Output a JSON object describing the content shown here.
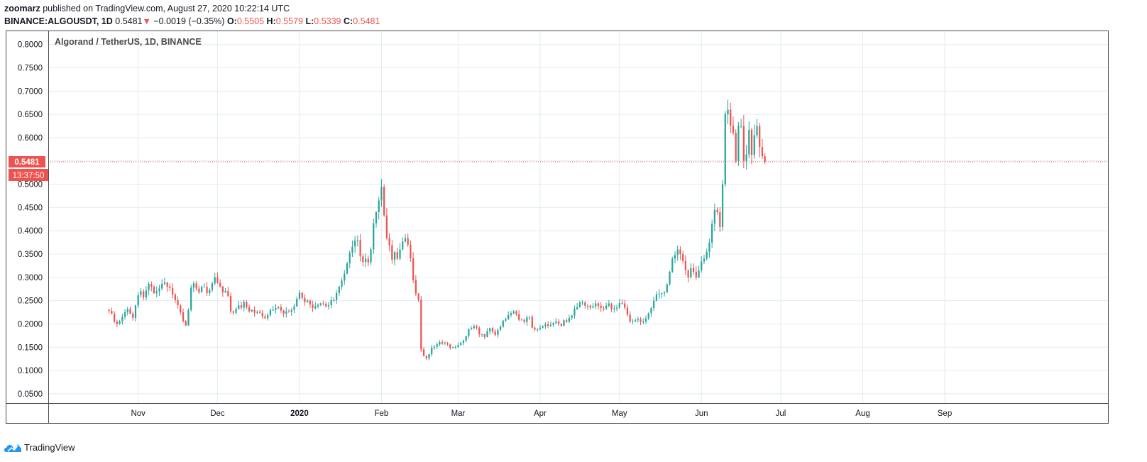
{
  "header": {
    "publisher": "zoomarz",
    "published_text": "published on TradingView.com, August 27, 2020 10:22:14 UTC",
    "symbol": "BINANCE:ALGOUSDT, 1D",
    "last": "0.5481",
    "arrow": "▼",
    "change": "−0.0019 (−0.35%)",
    "open_label": "O:",
    "open": "0.5505",
    "high_label": "H:",
    "high": "0.5579",
    "low_label": "L:",
    "low": "0.5339",
    "close_label": "C:",
    "close": "0.5481"
  },
  "footer": {
    "brand": "TradingView"
  },
  "colors": {
    "up": "#26a69a",
    "down": "#ef5350",
    "grid": "#e1ecf2",
    "border": "#4a4a4a"
  },
  "chart_data": {
    "type": "candlestick",
    "title": "Algorand / TetherUS, 1D, BINANCE",
    "ylim": [
      0.03,
      0.83
    ],
    "yticks": [
      0.05,
      0.1,
      0.15,
      0.2,
      0.25,
      0.3,
      0.35,
      0.4,
      0.45,
      0.5,
      0.55,
      0.6,
      0.65,
      0.7,
      0.75,
      0.8
    ],
    "ytick_labels": [
      "0.0500",
      "0.1000",
      "0.1500",
      "0.2000",
      "0.2500",
      "0.3000",
      "0.3500",
      "0.4000",
      "0.4500",
      "0.5000",
      "0.5500",
      "0.6000",
      "0.6500",
      "0.7000",
      "0.7500",
      "0.8000"
    ],
    "x_range_days": [
      -34,
      367
    ],
    "xticks": [
      {
        "label": "Nov",
        "day": 0,
        "bold": false
      },
      {
        "label": "Dec",
        "day": 30,
        "bold": false
      },
      {
        "label": "2020",
        "day": 61,
        "bold": true
      },
      {
        "label": "Feb",
        "day": 92,
        "bold": false
      },
      {
        "label": "Mar",
        "day": 121,
        "bold": false
      },
      {
        "label": "Apr",
        "day": 152,
        "bold": false
      },
      {
        "label": "May",
        "day": 182,
        "bold": false
      },
      {
        "label": "Jun",
        "day": 213,
        "bold": false
      },
      {
        "label": "Jul",
        "day": 243,
        "bold": false
      },
      {
        "label": "Aug",
        "day": 274,
        "bold": false
      },
      {
        "label": "Sep",
        "day": 305,
        "bold": false
      }
    ],
    "start_day": -11,
    "closes": [
      0.228,
      0.222,
      0.205,
      0.2,
      0.206,
      0.215,
      0.225,
      0.232,
      0.222,
      0.213,
      0.24,
      0.262,
      0.27,
      0.257,
      0.272,
      0.286,
      0.28,
      0.266,
      0.27,
      0.276,
      0.286,
      0.289,
      0.28,
      0.277,
      0.263,
      0.251,
      0.24,
      0.225,
      0.206,
      0.197,
      0.23,
      0.278,
      0.287,
      0.276,
      0.268,
      0.28,
      0.28,
      0.266,
      0.273,
      0.287,
      0.3,
      0.288,
      0.28,
      0.268,
      0.271,
      0.26,
      0.227,
      0.224,
      0.232,
      0.24,
      0.235,
      0.247,
      0.236,
      0.227,
      0.23,
      0.224,
      0.226,
      0.224,
      0.216,
      0.212,
      0.219,
      0.23,
      0.23,
      0.234,
      0.236,
      0.229,
      0.222,
      0.227,
      0.226,
      0.23,
      0.238,
      0.254,
      0.267,
      0.256,
      0.247,
      0.25,
      0.242,
      0.234,
      0.238,
      0.241,
      0.244,
      0.243,
      0.238,
      0.24,
      0.251,
      0.251,
      0.266,
      0.28,
      0.293,
      0.308,
      0.33,
      0.353,
      0.366,
      0.379,
      0.38,
      0.345,
      0.333,
      0.34,
      0.332,
      0.36,
      0.416,
      0.44,
      0.465,
      0.494,
      0.433,
      0.385,
      0.369,
      0.338,
      0.354,
      0.34,
      0.36,
      0.377,
      0.384,
      0.37,
      0.341,
      0.294,
      0.265,
      0.252,
      0.145,
      0.131,
      0.126,
      0.135,
      0.149,
      0.151,
      0.156,
      0.161,
      0.158,
      0.159,
      0.156,
      0.149,
      0.15,
      0.151,
      0.155,
      0.159,
      0.164,
      0.174,
      0.189,
      0.191,
      0.195,
      0.192,
      0.178,
      0.178,
      0.172,
      0.184,
      0.191,
      0.184,
      0.176,
      0.187,
      0.194,
      0.207,
      0.21,
      0.219,
      0.223,
      0.227,
      0.221,
      0.209,
      0.209,
      0.204,
      0.214,
      0.215,
      0.192,
      0.188,
      0.189,
      0.192,
      0.195,
      0.199,
      0.196,
      0.198,
      0.202,
      0.205,
      0.2,
      0.196,
      0.208,
      0.205,
      0.213,
      0.218,
      0.232,
      0.236,
      0.246,
      0.246,
      0.239,
      0.239,
      0.235,
      0.238,
      0.244,
      0.239,
      0.234,
      0.233,
      0.239,
      0.244,
      0.232,
      0.233,
      0.235,
      0.245,
      0.244,
      0.235,
      0.22,
      0.205,
      0.206,
      0.208,
      0.21,
      0.205,
      0.205,
      0.212,
      0.223,
      0.234,
      0.25,
      0.263,
      0.265,
      0.266,
      0.268,
      0.285,
      0.312,
      0.34,
      0.348,
      0.36,
      0.35,
      0.335,
      0.315,
      0.3,
      0.32,
      0.312,
      0.3,
      0.315,
      0.334,
      0.34,
      0.355,
      0.375,
      0.415,
      0.445,
      0.44,
      0.408,
      0.5,
      0.65,
      0.66,
      0.626,
      0.61,
      0.55,
      0.625,
      0.625,
      0.55,
      0.564,
      0.617,
      0.563,
      0.605,
      0.625,
      0.58,
      0.56,
      0.548
    ],
    "last_price": "0.5481",
    "countdown": "13:37:50",
    "last_value": 0.5481
  }
}
